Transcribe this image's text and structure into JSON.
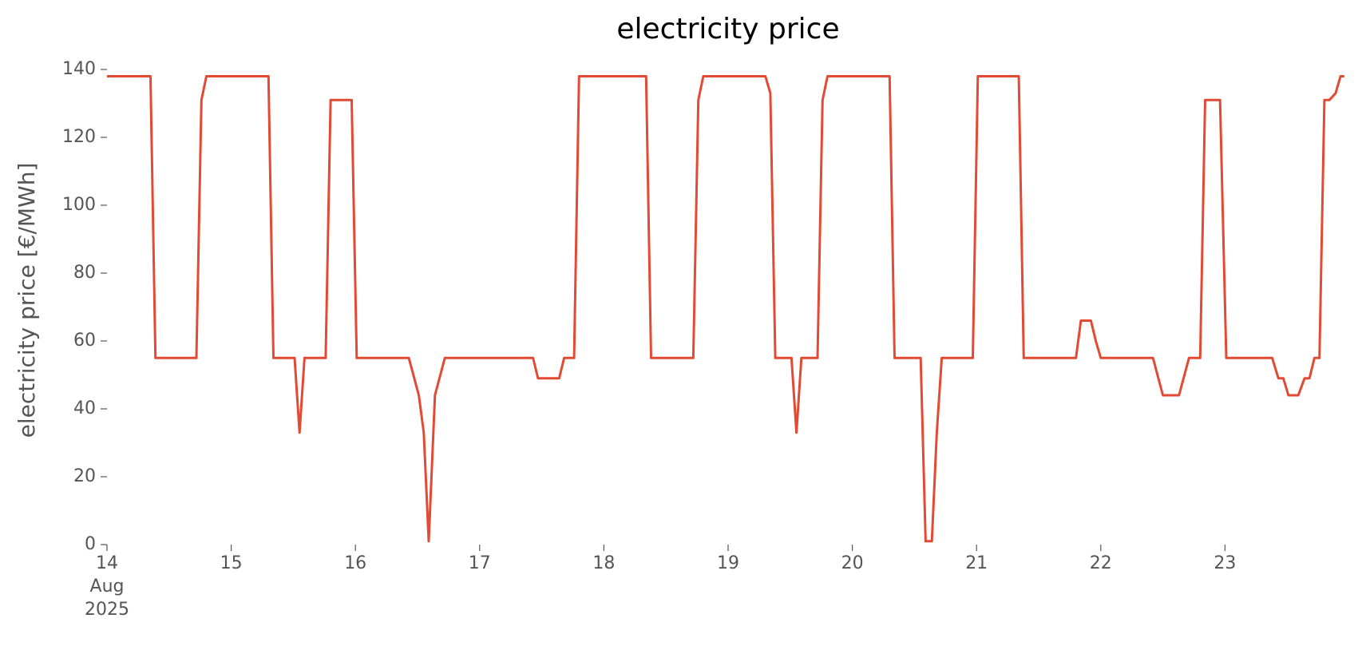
{
  "chart_data": {
    "type": "line",
    "title": "electricity price",
    "y_label": "electricity price [€/MWh]",
    "x": [
      14.0,
      14.35,
      14.39,
      14.72,
      14.76,
      14.8,
      15.3,
      15.34,
      15.51,
      15.55,
      15.59,
      15.76,
      15.8,
      15.97,
      16.01,
      16.43,
      16.51,
      16.55,
      16.59,
      16.64,
      16.72,
      17.43,
      17.47,
      17.64,
      17.68,
      17.76,
      17.8,
      18.34,
      18.38,
      18.72,
      18.76,
      18.8,
      19.3,
      19.34,
      19.38,
      19.51,
      19.55,
      19.59,
      19.72,
      19.76,
      19.8,
      20.3,
      20.34,
      20.55,
      20.59,
      20.64,
      20.68,
      20.72,
      20.97,
      21.01,
      21.34,
      21.38,
      21.8,
      21.84,
      21.92,
      21.96,
      22.0,
      22.42,
      22.5,
      22.63,
      22.71,
      22.8,
      22.84,
      22.96,
      23.01,
      23.38,
      23.43,
      23.47,
      23.51,
      23.59,
      23.64,
      23.68,
      23.72,
      23.76,
      23.8,
      23.84,
      23.89,
      23.93,
      23.96
    ],
    "series": [
      {
        "name": "electricity price",
        "color": "#E24A33",
        "values": [
          138,
          138,
          55,
          55,
          131,
          138,
          138,
          55,
          55,
          33,
          55,
          55,
          131,
          131,
          55,
          55,
          44,
          33,
          1,
          44,
          55,
          55,
          49,
          49,
          55,
          55,
          138,
          138,
          55,
          55,
          131,
          138,
          138,
          133,
          55,
          55,
          33,
          55,
          55,
          131,
          138,
          138,
          55,
          55,
          1,
          1,
          33,
          55,
          55,
          138,
          138,
          55,
          55,
          66,
          66,
          60,
          55,
          55,
          44,
          44,
          55,
          55,
          131,
          131,
          55,
          55,
          49,
          49,
          44,
          44,
          49,
          49,
          55,
          55,
          131,
          131,
          133,
          138,
          138
        ]
      }
    ],
    "xlim": [
      14,
      24
    ],
    "xticks": [
      {
        "value": 14,
        "label": "14\nAug\n2025"
      },
      15,
      16,
      17,
      18,
      19,
      20,
      21,
      22,
      23
    ],
    "ylim": [
      0,
      140
    ],
    "yticks": [
      0,
      20,
      40,
      60,
      80,
      100,
      120,
      140
    ],
    "grid": false
  }
}
